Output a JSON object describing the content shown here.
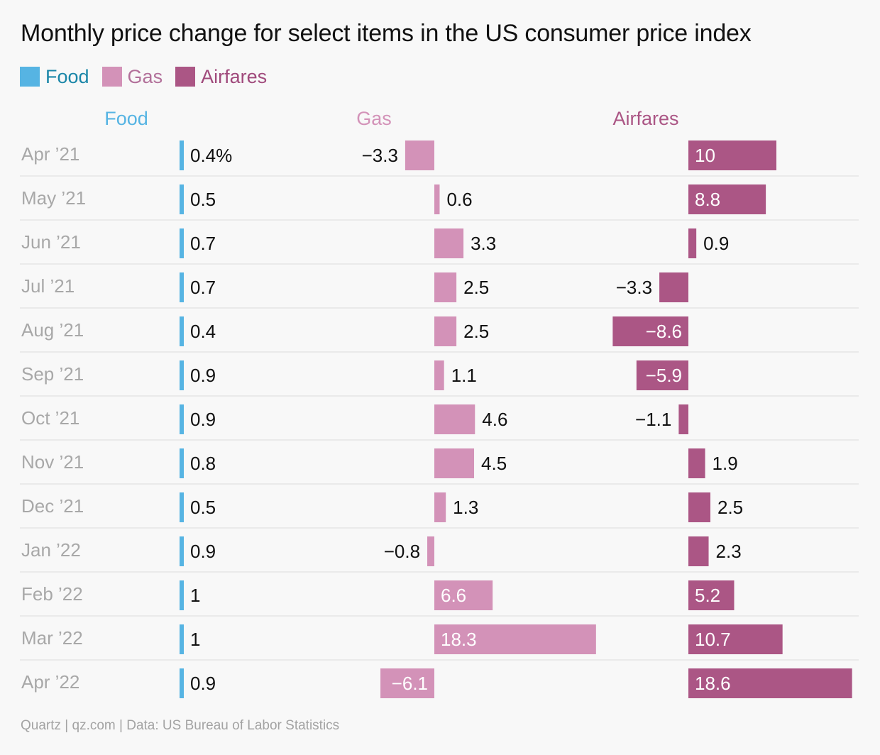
{
  "title": "Monthly price change for select items in the US consumer price index",
  "legend": [
    {
      "label": "Food",
      "color": "#56b4e3",
      "text_color": "#1a86a8"
    },
    {
      "label": "Gas",
      "color": "#d392b8",
      "text_color": "#b2709a"
    },
    {
      "label": "Airfares",
      "color": "#ab5685",
      "text_color": "#a04a7c"
    }
  ],
  "footer": "Quartz | qz.com | Data: US Bureau of Labor Statistics",
  "chart_data": {
    "type": "bar",
    "orientation": "horizontal",
    "layout": "small multiples (one panel per series)",
    "unit_suffix_first_label": "%",
    "categories": [
      "Apr ’21",
      "May ’21",
      "Jun ’21",
      "Jul ’21",
      "Aug ’21",
      "Sep ’21",
      "Oct ’21",
      "Nov ’21",
      "Dec ’21",
      "Jan ’22",
      "Feb ’22",
      "Mar ’22",
      "Apr ’22"
    ],
    "series": [
      {
        "name": "Food",
        "color": "#56b4e3",
        "header_color": "#56b4e3",
        "values": [
          0.4,
          0.5,
          0.7,
          0.7,
          0.4,
          0.9,
          0.9,
          0.8,
          0.5,
          0.9,
          1,
          1,
          0.9
        ]
      },
      {
        "name": "Gas",
        "color": "#d392b8",
        "header_color": "#d392b8",
        "values": [
          -3.3,
          0.6,
          3.3,
          2.5,
          2.5,
          1.1,
          4.6,
          4.5,
          1.3,
          -0.8,
          6.6,
          18.3,
          -6.1
        ]
      },
      {
        "name": "Airfares",
        "color": "#ab5685",
        "header_color": "#ab5685",
        "values": [
          10,
          8.8,
          0.9,
          -3.3,
          -8.6,
          -5.9,
          -1.1,
          1.9,
          2.5,
          2.3,
          5.2,
          10.7,
          18.6
        ]
      }
    ],
    "grid": "horizontal row separators"
  }
}
